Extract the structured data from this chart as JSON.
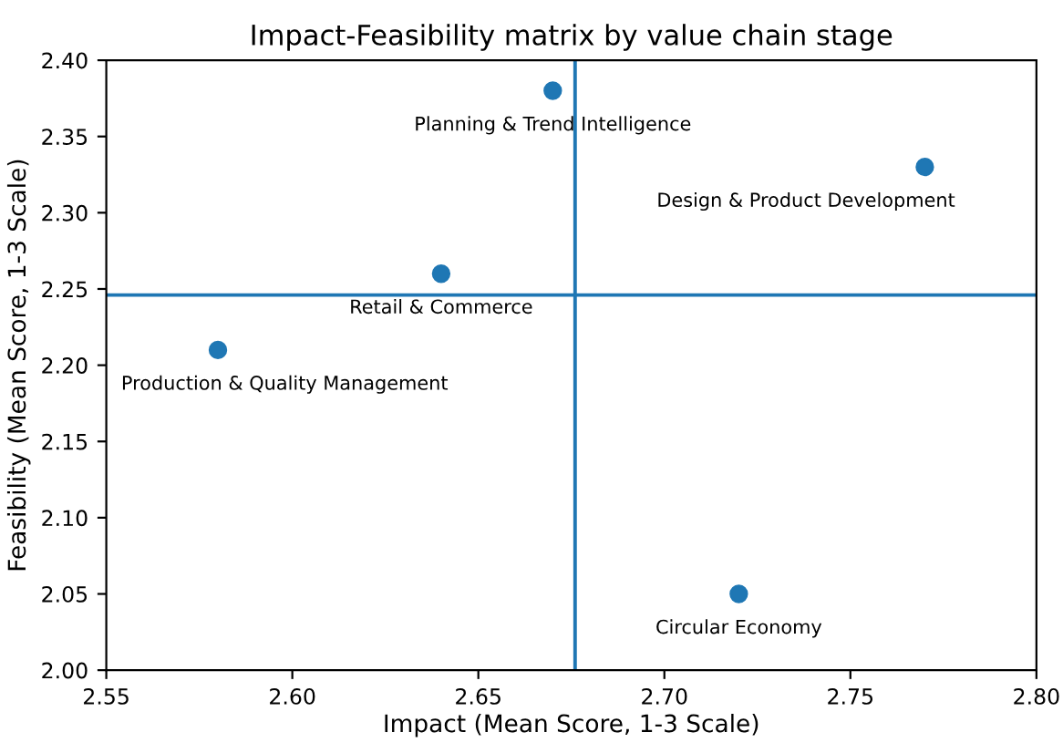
{
  "chart_data": {
    "type": "scatter",
    "title": "Impact-Feasibility matrix by value chain stage",
    "xlabel": "Impact (Mean Score, 1-3 Scale)",
    "ylabel": "Feasibility (Mean Score, 1-3 Scale)",
    "x": [
      2.58,
      2.64,
      2.67,
      2.72,
      2.77
    ],
    "values": [
      2.21,
      2.26,
      2.38,
      2.05,
      2.33
    ],
    "color": "#1f77b4",
    "marker": "circle",
    "xlim": [
      2.55,
      2.8
    ],
    "xticks": [
      2.55,
      {
        "value": 2.6,
        "label": "2.60"
      },
      2.65,
      {
        "value": 2.7,
        "label": "2.70"
      },
      2.75,
      {
        "value": 2.8,
        "label": "2.80"
      }
    ],
    "ylim": [
      2.0,
      2.4
    ],
    "yticks": [
      {
        "value": 2.0,
        "label": "2.00"
      },
      2.05,
      {
        "value": 2.1,
        "label": "2.10"
      },
      2.15,
      {
        "value": 2.2,
        "label": "2.20"
      },
      2.25,
      {
        "value": 2.3,
        "label": "2.30"
      },
      2.35,
      {
        "value": 2.4,
        "label": "2.40"
      }
    ],
    "ref_lines": [
      {
        "axis": "x",
        "value": 2.676,
        "color": "#1f77b4"
      },
      {
        "axis": "y",
        "value": 2.246,
        "color": "#1f77b4"
      }
    ],
    "annotations": [
      {
        "text": "Production & Quality Management",
        "x": 2.58,
        "y": 2.21
      },
      {
        "text": "Retail & Commerce",
        "x": 2.64,
        "y": 2.26
      },
      {
        "text": "Planning & Trend Intelligence",
        "x": 2.67,
        "y": 2.38
      },
      {
        "text": "Circular Economy",
        "x": 2.72,
        "y": 2.05
      },
      {
        "text": "Design & Product Development",
        "x": 2.77,
        "y": 2.33
      }
    ],
    "grid": false,
    "legend": false
  }
}
